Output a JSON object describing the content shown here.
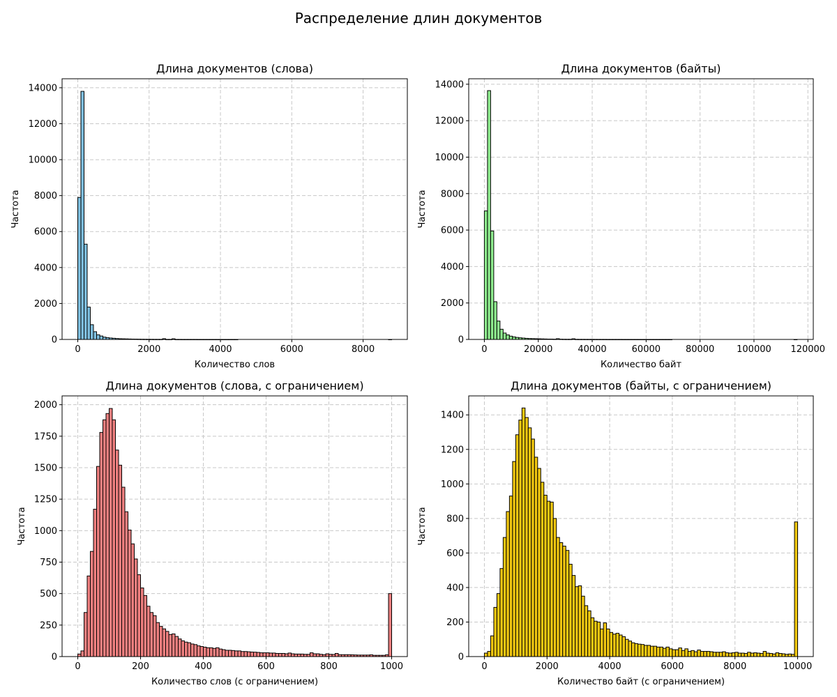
{
  "figure": {
    "title": "Распределение длин документов"
  },
  "chart_data": [
    {
      "type": "bar",
      "title": "Длина документов (слова)",
      "xlabel": "Количество слов",
      "ylabel": "Частота",
      "xlim": [
        -440,
        9240
      ],
      "ylim": [
        0,
        14500
      ],
      "xticks": [
        0,
        2000,
        4000,
        6000,
        8000
      ],
      "yticks": [
        0,
        2000,
        4000,
        6000,
        8000,
        10000,
        12000,
        14000
      ],
      "grid": true,
      "color": "#7fbfdf",
      "bin_start": 0,
      "bin_width": 88,
      "values": [
        7900,
        13800,
        5300,
        1800,
        820,
        430,
        260,
        190,
        130,
        100,
        80,
        65,
        50,
        40,
        35,
        30,
        25,
        20,
        18,
        15,
        12,
        10,
        8,
        8,
        6,
        6,
        5,
        40,
        4,
        4,
        35,
        3,
        3,
        2,
        2,
        2,
        2,
        2,
        1,
        1,
        1,
        1,
        1,
        1,
        1,
        1,
        1,
        1,
        1,
        1,
        1,
        0,
        0,
        0,
        0,
        0,
        0,
        0,
        0,
        0,
        0,
        0,
        0,
        0,
        0,
        0,
        0,
        0,
        0,
        0,
        0,
        0,
        0,
        0,
        0,
        0,
        0,
        0,
        0,
        0,
        0,
        0,
        0,
        0,
        0,
        0,
        0,
        0,
        0,
        0,
        0,
        0,
        0,
        0,
        0,
        0,
        0,
        0,
        0,
        1
      ]
    },
    {
      "type": "bar",
      "title": "Длина документов (байты)",
      "xlabel": "Количество байт",
      "ylabel": "Частота",
      "xlim": [
        -5800,
        122000
      ],
      "ylim": [
        0,
        14300
      ],
      "xticks": [
        0,
        20000,
        40000,
        60000,
        80000,
        100000,
        120000
      ],
      "yticks": [
        0,
        2000,
        4000,
        6000,
        8000,
        10000,
        12000,
        14000
      ],
      "grid": true,
      "color": "#90ee90",
      "bin_start": 0,
      "bin_width": 1160,
      "values": [
        7050,
        13650,
        5950,
        2070,
        1010,
        560,
        350,
        250,
        180,
        140,
        110,
        90,
        75,
        60,
        50,
        45,
        40,
        35,
        30,
        25,
        20,
        20,
        15,
        40,
        15,
        12,
        10,
        10,
        35,
        8,
        6,
        6,
        5,
        5,
        4,
        4,
        3,
        3,
        3,
        2,
        2,
        2,
        2,
        2,
        1,
        1,
        1,
        1,
        1,
        1,
        1,
        1,
        1,
        1,
        1,
        1,
        1,
        1,
        1,
        1,
        0,
        0,
        0,
        0,
        0,
        0,
        0,
        0,
        0,
        0,
        0,
        0,
        0,
        0,
        0,
        0,
        0,
        0,
        0,
        0,
        0,
        0,
        0,
        0,
        0,
        0,
        0,
        0,
        0,
        0,
        0,
        0,
        0,
        0,
        0,
        0,
        0,
        0,
        0,
        1
      ]
    },
    {
      "type": "bar",
      "title": "Длина документов (слова, с ограничением)",
      "xlabel": "Количество слов (с ограничением)",
      "ylabel": "Частота",
      "xlim": [
        -50,
        1050
      ],
      "ylim": [
        0,
        2070
      ],
      "xticks": [
        0,
        200,
        400,
        600,
        800,
        1000
      ],
      "yticks": [
        0,
        250,
        500,
        750,
        1000,
        1250,
        1500,
        1750,
        2000
      ],
      "grid": true,
      "color": "#f08080",
      "bin_start": 0,
      "bin_width": 10,
      "values": [
        20,
        45,
        350,
        640,
        835,
        1170,
        1510,
        1780,
        1880,
        1930,
        1970,
        1880,
        1640,
        1520,
        1345,
        1150,
        1005,
        895,
        775,
        650,
        545,
        485,
        400,
        350,
        325,
        270,
        240,
        220,
        200,
        175,
        180,
        160,
        140,
        125,
        115,
        110,
        100,
        95,
        85,
        80,
        75,
        70,
        70,
        65,
        70,
        60,
        55,
        50,
        50,
        48,
        45,
        45,
        40,
        40,
        38,
        36,
        35,
        33,
        30,
        30,
        30,
        28,
        28,
        25,
        25,
        25,
        22,
        28,
        22,
        20,
        20,
        20,
        18,
        18,
        30,
        22,
        22,
        18,
        15,
        22,
        18,
        17,
        25,
        15,
        15,
        15,
        15,
        14,
        13,
        12,
        12,
        12,
        12,
        14,
        10,
        10,
        10,
        10,
        14,
        500
      ]
    },
    {
      "type": "bar",
      "title": "Длина документов (байты, с ограничением)",
      "xlabel": "Количество байт (с ограничением)",
      "ylabel": "Частота",
      "xlim": [
        -500,
        10500
      ],
      "ylim": [
        0,
        1510
      ],
      "xticks": [
        0,
        2000,
        4000,
        6000,
        8000,
        10000
      ],
      "yticks": [
        0,
        200,
        400,
        600,
        800,
        1000,
        1200,
        1400
      ],
      "grid": true,
      "color": "#f2c811",
      "bin_start": 0,
      "bin_width": 100,
      "values": [
        20,
        30,
        120,
        285,
        365,
        510,
        690,
        840,
        930,
        1130,
        1285,
        1370,
        1440,
        1385,
        1325,
        1260,
        1155,
        1090,
        1010,
        935,
        900,
        895,
        800,
        690,
        660,
        640,
        615,
        535,
        470,
        405,
        410,
        350,
        295,
        265,
        225,
        205,
        200,
        160,
        195,
        160,
        140,
        130,
        135,
        125,
        115,
        100,
        90,
        80,
        75,
        72,
        70,
        65,
        65,
        60,
        60,
        55,
        55,
        48,
        55,
        45,
        40,
        40,
        50,
        35,
        45,
        30,
        35,
        28,
        38,
        30,
        30,
        30,
        28,
        25,
        25,
        25,
        28,
        22,
        20,
        22,
        25,
        20,
        20,
        18,
        25,
        20,
        22,
        20,
        18,
        30,
        20,
        18,
        15,
        22,
        18,
        16,
        13,
        15,
        13,
        780
      ]
    }
  ]
}
